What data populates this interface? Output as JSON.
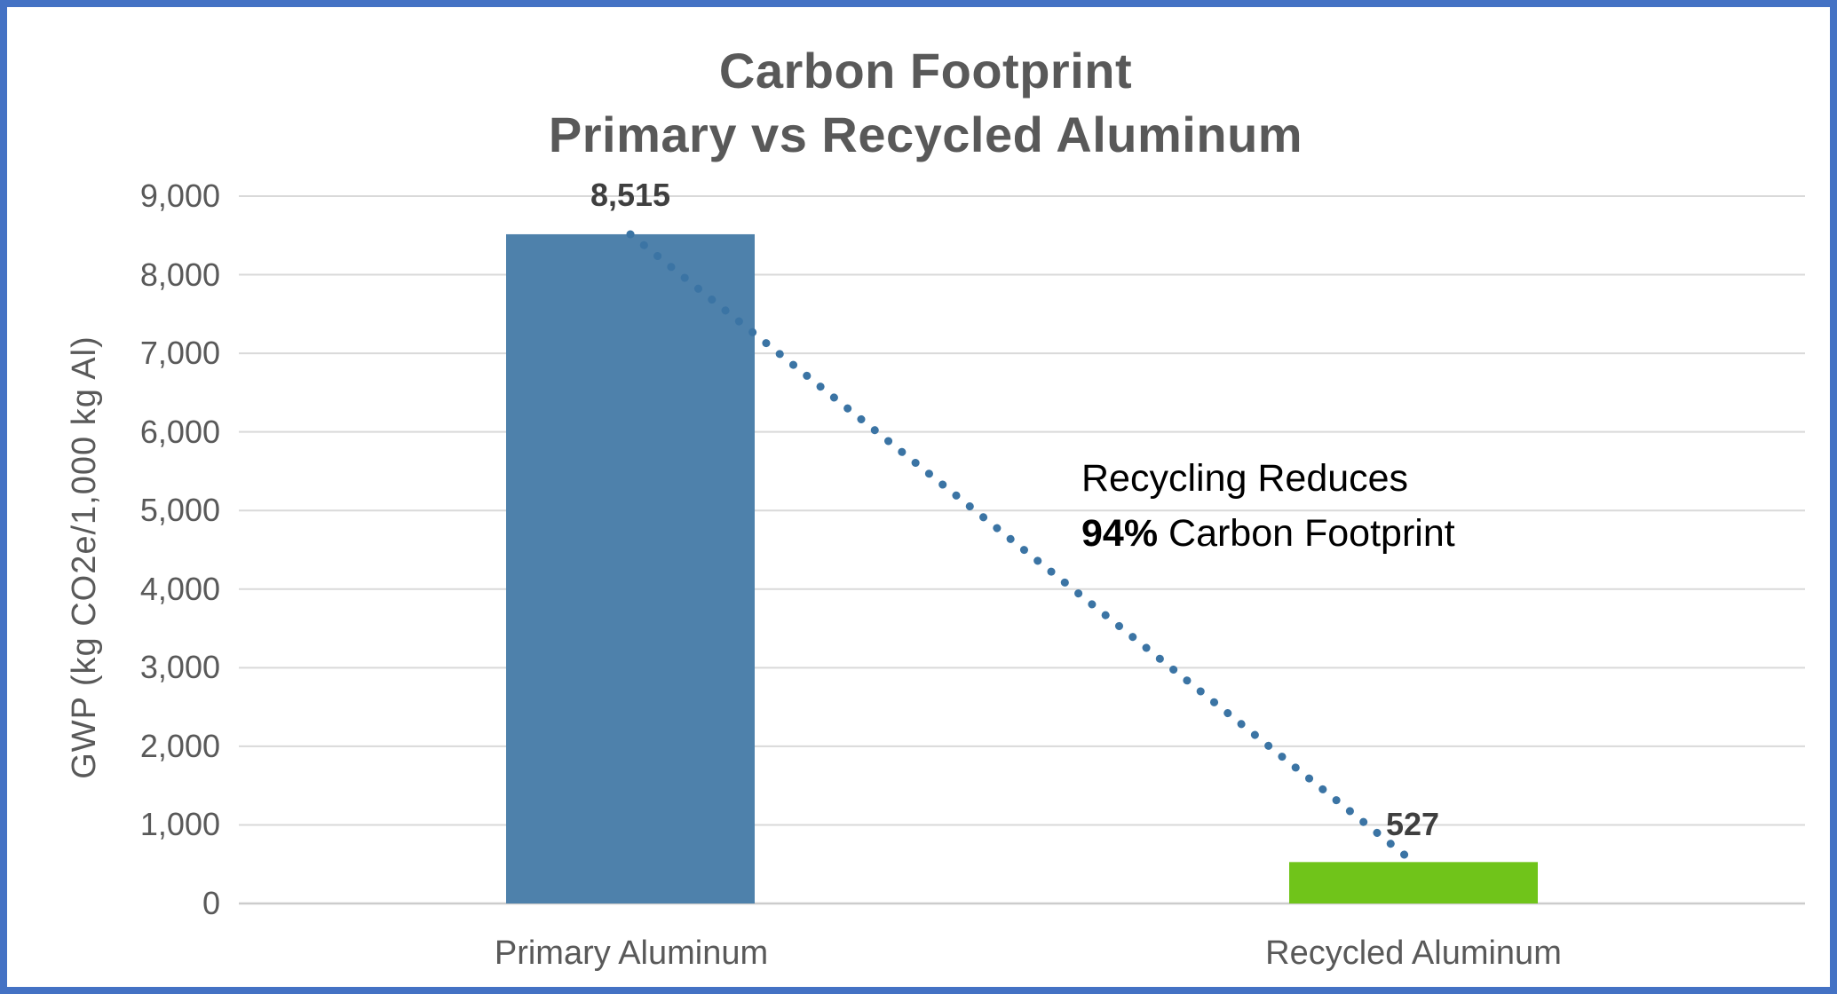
{
  "frame": {
    "border_color": "#4472C4",
    "background": "#FFFFFF"
  },
  "chart_data": {
    "type": "bar",
    "title_line1": "Carbon Footprint",
    "title_line2": "Primary vs Recycled Aluminum",
    "ylabel": "GWP (kg CO2e/1,000 kg Al)",
    "xlabel": "",
    "categories": [
      "Primary Aluminum",
      "Recycled Aluminum"
    ],
    "values": [
      8515,
      527
    ],
    "data_labels": [
      "8,515",
      "527"
    ],
    "bar_colors": [
      "#4E81AB",
      "#70C41A"
    ],
    "ylim": [
      0,
      9000
    ],
    "ytick_step": 1000,
    "ytick_labels": [
      "0",
      "1,000",
      "2,000",
      "3,000",
      "4,000",
      "5,000",
      "6,000",
      "7,000",
      "8,000",
      "9,000"
    ],
    "grid": true,
    "gridline_color": "#D9D9D9",
    "zero_line_color": "#CCCCCC",
    "legend": "none",
    "trend_line": {
      "style": "dotted",
      "color": "#3B74A4",
      "from_value": 8515,
      "to_value": 527
    },
    "annotation": {
      "line1": "Recycling Reduces",
      "line2_bold": "94%",
      "line2_rest": " Carbon Footprint"
    }
  }
}
